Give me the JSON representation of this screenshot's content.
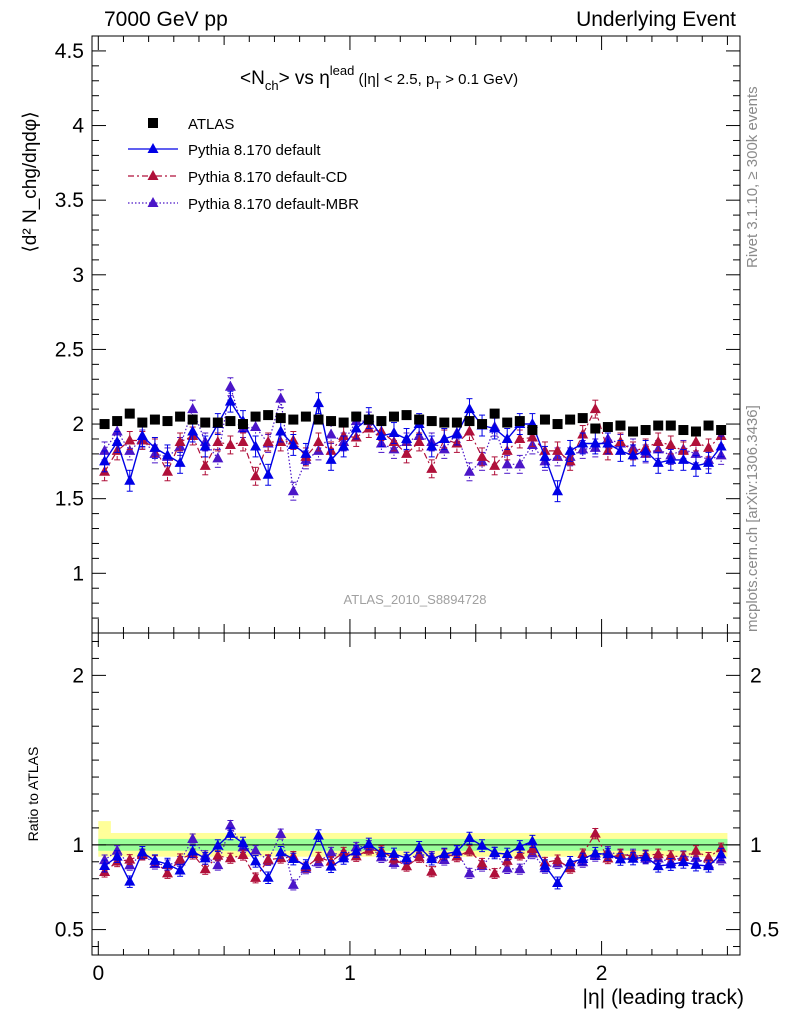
{
  "header": {
    "left": "7000 GeV pp",
    "right": "Underlying Event"
  },
  "side_text": {
    "top": "Rivet 3.1.10, ≥ 300k events",
    "bottom": "mcplots.cern.ch [arXiv:1306.3436]"
  },
  "chart_data": {
    "type": "scatter",
    "title_main": "<N",
    "title_sub1": "ch",
    "title_mid": "> vs η",
    "title_sup": "lead",
    "title_cut1": " (|η| < 2.5, p",
    "title_sub2": "T",
    "title_cut2": " > 0.1 GeV)",
    "watermark": "ATLAS_2010_S8894728",
    "xlabel": "|η| (leading track)",
    "ylabel_top": "⟨d² N_chg/dηdφ⟩",
    "ylabel_bottom": "Ratio to ATLAS",
    "xlim": [
      -0.025,
      2.55
    ],
    "ylim_top": [
      0.6,
      4.6
    ],
    "ylim_bottom": [
      0.35,
      2.25
    ],
    "xticks": [
      "0",
      "1",
      "2"
    ],
    "yticks_top": [
      "1",
      "1.5",
      "2",
      "2.5",
      "3",
      "3.5",
      "4",
      "4.5"
    ],
    "yticks_bottom": [
      "0.5",
      "1",
      "2"
    ],
    "legend_position": "top-left",
    "legend": [
      {
        "label": "ATLAS"
      },
      {
        "label": "Pythia 8.170 default"
      },
      {
        "label": "Pythia 8.170 default-CD"
      },
      {
        "label": "Pythia 8.170 default-MBR"
      }
    ],
    "colors": {
      "data": "#000000",
      "default": "#0000e6",
      "cd": "#b0103a",
      "mbr": "#4b16c8",
      "band_yellow": "#ffff99",
      "band_green": "#99ff99"
    },
    "x": [
      0.025,
      0.075,
      0.125,
      0.175,
      0.225,
      0.275,
      0.325,
      0.375,
      0.425,
      0.475,
      0.525,
      0.575,
      0.625,
      0.675,
      0.725,
      0.775,
      0.825,
      0.875,
      0.925,
      0.975,
      1.025,
      1.075,
      1.125,
      1.175,
      1.225,
      1.275,
      1.325,
      1.375,
      1.425,
      1.475,
      1.525,
      1.575,
      1.625,
      1.675,
      1.725,
      1.775,
      1.825,
      1.875,
      1.925,
      1.975,
      2.025,
      2.075,
      2.125,
      2.175,
      2.225,
      2.275,
      2.325,
      2.375,
      2.425,
      2.475
    ],
    "series": [
      {
        "key": "data",
        "values": [
          2.0,
          2.02,
          2.07,
          2.01,
          2.03,
          2.02,
          2.05,
          2.03,
          2.01,
          2.01,
          2.02,
          2.0,
          2.05,
          2.06,
          2.04,
          2.03,
          2.05,
          2.03,
          2.02,
          2.01,
          2.05,
          2.03,
          2.02,
          2.05,
          2.06,
          2.03,
          2.02,
          2.01,
          2.01,
          2.02,
          2.0,
          2.07,
          2.01,
          2.02,
          1.96,
          2.03,
          2.0,
          2.03,
          2.04,
          1.97,
          1.98,
          1.99,
          1.95,
          1.96,
          1.99,
          1.99,
          1.96,
          1.95,
          1.99,
          1.96
        ]
      },
      {
        "key": "default",
        "values": [
          1.75,
          1.88,
          1.62,
          1.92,
          1.84,
          1.79,
          1.74,
          1.95,
          1.85,
          2.0,
          2.15,
          2.02,
          1.85,
          1.66,
          1.95,
          1.86,
          1.8,
          2.14,
          1.76,
          1.85,
          1.97,
          2.04,
          1.92,
          1.94,
          1.9,
          2.0,
          1.85,
          1.9,
          1.93,
          2.1,
          1.99,
          1.97,
          1.9,
          2.0,
          2.0,
          1.78,
          1.55,
          1.82,
          1.87,
          1.87,
          1.87,
          1.82,
          1.79,
          1.82,
          1.74,
          1.76,
          1.76,
          1.72,
          1.74,
          1.85
        ]
      },
      {
        "key": "cd",
        "values": [
          1.68,
          1.82,
          1.89,
          1.89,
          1.84,
          1.68,
          1.88,
          1.92,
          1.72,
          1.88,
          1.86,
          1.88,
          1.65,
          1.88,
          1.88,
          1.89,
          1.78,
          1.88,
          1.82,
          1.92,
          1.91,
          1.97,
          1.95,
          1.88,
          1.8,
          1.88,
          1.7,
          1.9,
          1.87,
          1.95,
          1.78,
          1.72,
          1.82,
          1.9,
          1.91,
          1.82,
          1.82,
          1.75,
          1.93,
          2.1,
          1.82,
          1.88,
          1.82,
          1.84,
          1.88,
          1.86,
          1.82,
          1.88,
          1.84,
          1.92
        ]
      },
      {
        "key": "mbr",
        "values": [
          1.82,
          1.95,
          1.82,
          1.9,
          1.8,
          1.78,
          1.85,
          2.1,
          1.88,
          1.77,
          2.25,
          1.97,
          1.98,
          1.87,
          2.17,
          1.55,
          1.76,
          1.82,
          1.93,
          1.88,
          2.02,
          2.02,
          1.87,
          1.83,
          1.88,
          1.92,
          1.88,
          1.83,
          1.94,
          1.68,
          1.75,
          1.98,
          1.73,
          1.73,
          1.86,
          1.75,
          1.78,
          1.78,
          1.83,
          1.84,
          1.9,
          1.87,
          1.84,
          1.8,
          1.83,
          1.79,
          1.83,
          1.8,
          1.76,
          1.79
        ]
      }
    ]
  }
}
